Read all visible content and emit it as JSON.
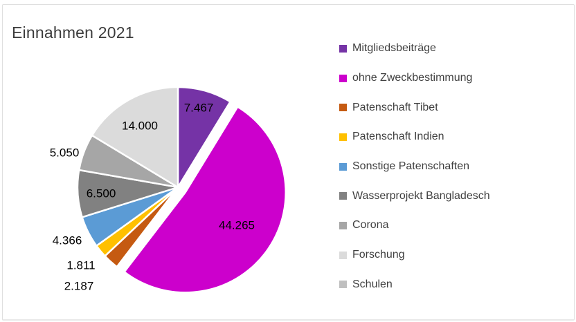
{
  "chart_data": {
    "type": "pie",
    "title": "Einnahmen 2021",
    "legend_position": "right",
    "grid": false,
    "start_angle_deg": 0,
    "direction": "clockwise",
    "exploded_category": "ohne Zweckbestimmung",
    "categories": [
      "Mitgliedsbeiträge",
      "ohne Zweckbestimmung",
      "Patenschaft Tibet",
      "Patenschaft Indien",
      "Sonstige Patenschaften",
      "Wasserprojekt Bangladesch",
      "Corona",
      "Forschung",
      "Schulen"
    ],
    "values": [
      7467,
      44265,
      2187,
      1811,
      4366,
      6500,
      5050,
      14000,
      0
    ],
    "display_labels": [
      "7.467",
      "44.265",
      "2.187",
      "1.811",
      "4.366",
      "6.500",
      "5.050",
      "14.000",
      ""
    ],
    "colors": [
      "#7533A6",
      "#CC00CC",
      "#C55A11",
      "#FFC000",
      "#5B9BD5",
      "#818181",
      "#A6A6A6",
      "#DBDBDB",
      "#BFBFBF"
    ],
    "slice_border_color": "#FFFFFF",
    "label_text_color": "#000000",
    "title_color": "#3C3C3C",
    "legend_text_color": "#404040"
  }
}
